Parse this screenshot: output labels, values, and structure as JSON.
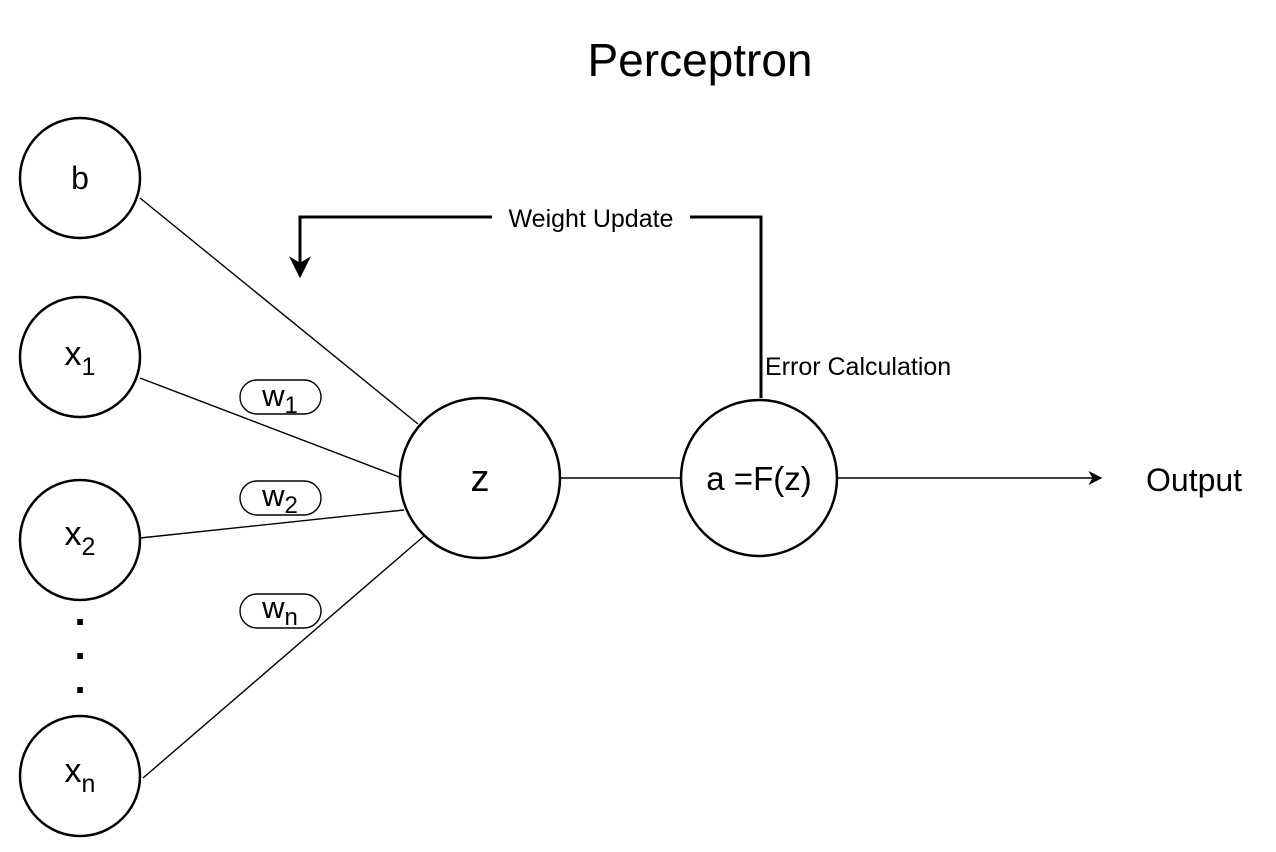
{
  "title": "Perceptron",
  "nodes": {
    "bias": "b",
    "x1": {
      "base": "x",
      "sub": "1"
    },
    "x2": {
      "base": "x",
      "sub": "2"
    },
    "xn": {
      "base": "x",
      "sub": "n"
    },
    "sum": "z",
    "activation": "a =F(z)"
  },
  "ellipsis_dots": ".",
  "weights": {
    "w1": {
      "base": "w",
      "sub": "1"
    },
    "w2": {
      "base": "w",
      "sub": "2"
    },
    "wn": {
      "base": "w",
      "sub": "n"
    }
  },
  "labels": {
    "weight_update": "Weight Update",
    "error_calculation": "Error Calculation",
    "output": "Output"
  }
}
